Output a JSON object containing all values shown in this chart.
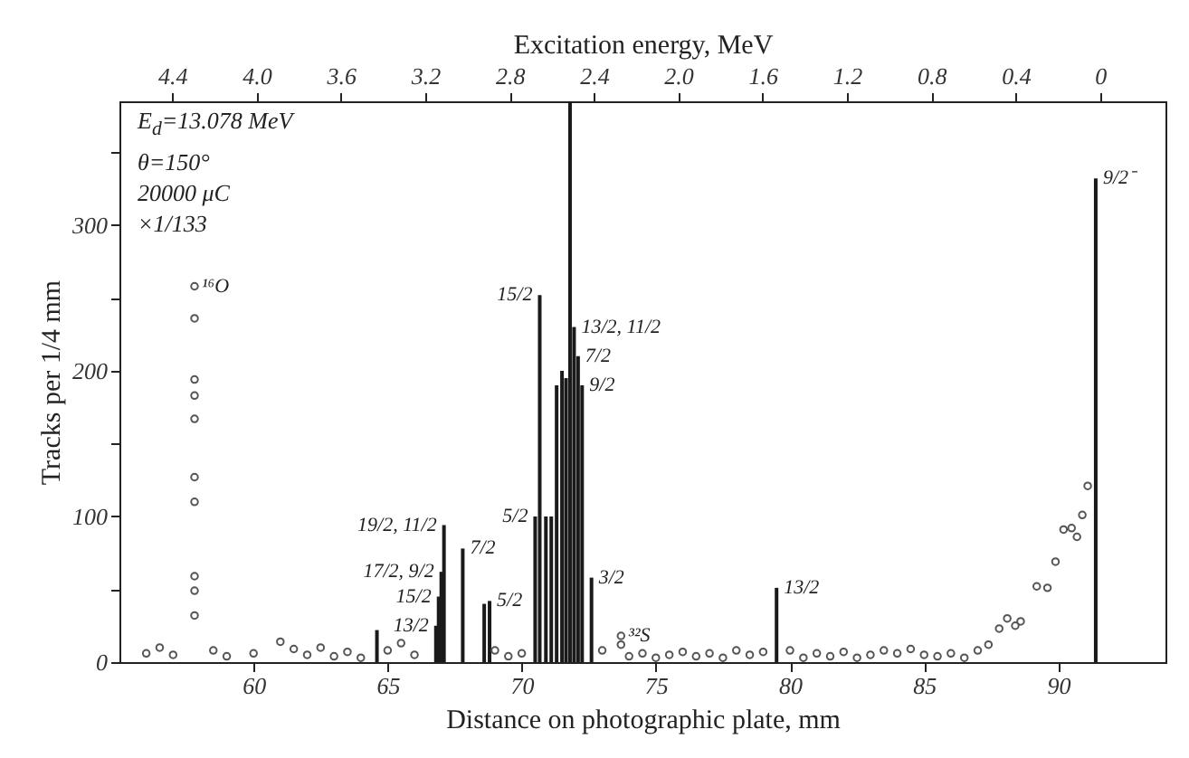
{
  "chart_data": {
    "type": "bar",
    "xlabel": "Distance on photographic plate, mm",
    "ylabel": "Tracks per 1/4 mm",
    "x2label": "Excitation energy, MeV",
    "xlim": [
      55,
      94
    ],
    "ylim": [
      0,
      385
    ],
    "x2lim": [
      4.65,
      -0.31
    ],
    "xticks": [
      60,
      65,
      70,
      75,
      80,
      85,
      90
    ],
    "yticks": [
      0,
      {
        "value": 50,
        "label": null
      },
      100,
      {
        "value": 150,
        "label": null
      },
      200,
      {
        "value": 250,
        "label": null
      },
      300,
      {
        "value": 350,
        "label": null
      }
    ],
    "x2ticks": [
      4.4,
      {
        "value": 4,
        "label": "4.0"
      },
      3.6,
      3.2,
      2.8,
      2.4,
      {
        "value": 2,
        "label": "2.0"
      },
      1.6,
      1.2,
      0.8,
      0.4,
      0
    ],
    "marker": "circle",
    "series": [
      {
        "color": "#1a1a1a",
        "x": [
          64.6,
          66.8,
          66.9,
          67.0,
          67.1,
          67.8,
          68.6,
          68.8,
          70.5,
          70.67,
          70.9,
          71.1,
          71.3,
          71.5,
          71.65,
          71.8,
          71.95,
          72.1,
          72.25,
          72.6,
          79.5,
          91.4
        ],
        "values": [
          22,
          25,
          45,
          62,
          94,
          78,
          40,
          42,
          100,
          252,
          100,
          100,
          190,
          200,
          195,
          385,
          230,
          210,
          190,
          58,
          51,
          332
        ]
      },
      {
        "type": "scatter",
        "color": "#555555",
        "x": [
          57.8,
          57.8,
          57.8,
          57.8,
          57.8,
          57.8,
          57.8,
          57.8,
          57.8,
          57.8,
          87.8,
          88.1,
          88.4,
          88.6,
          89.2,
          89.6,
          89.9,
          90.2,
          90.5,
          90.7,
          90.9,
          91.1,
          73.7,
          73.7,
          56,
          56.5,
          57,
          58.5,
          59,
          60,
          61,
          61.5,
          62,
          62.5,
          63,
          63.5,
          64,
          65,
          65.5,
          66,
          69,
          69.5,
          70,
          73,
          74,
          74.5,
          75,
          75.5,
          76,
          76.5,
          77,
          77.5,
          78,
          78.5,
          79,
          80,
          80.5,
          81,
          81.5,
          82,
          82.5,
          83,
          83.5,
          84,
          84.5,
          85,
          85.5,
          86,
          86.5,
          87,
          87.4
        ],
        "values": [
          258,
          236,
          194,
          183,
          167,
          127,
          110,
          59,
          49,
          32,
          23,
          30,
          25,
          28,
          52,
          51,
          69,
          91,
          92,
          86,
          101,
          121,
          18,
          12,
          6,
          10,
          5,
          8,
          4,
          6,
          14,
          9,
          5,
          10,
          4,
          7,
          3,
          8,
          13,
          5,
          8,
          4,
          6,
          8,
          4,
          6,
          3,
          5,
          7,
          4,
          6,
          3,
          8,
          5,
          7,
          8,
          3,
          6,
          4,
          7,
          3,
          5,
          8,
          6,
          9,
          5,
          4,
          6,
          3,
          8,
          12
        ]
      }
    ],
    "annotations": [
      "E$_{d}$=13.078 MeV",
      "θ=150°",
      "20000 μC",
      "×1/133",
      {
        "text": "¹⁶O",
        "x": 57.8,
        "y": 258
      },
      {
        "text": "17/2, 9/2",
        "x": 67.0,
        "y": 62
      },
      {
        "text": "15/2",
        "x": 66.9,
        "y": 45
      },
      {
        "text": "13/2",
        "x": 66.8,
        "y": 25
      },
      {
        "text": "19/2, 11/2",
        "x": 67.1,
        "y": 94
      },
      {
        "text": "7/2",
        "x": 67.8,
        "y": 78
      },
      {
        "text": "5/2",
        "x": 68.8,
        "y": 42
      },
      {
        "text": "15/2",
        "x": 70.67,
        "y": 252
      },
      {
        "text": "13/2, 11/2",
        "x": 71.95,
        "y": 230
      },
      {
        "text": "7/2",
        "x": 72.1,
        "y": 210
      },
      {
        "text": "9/2",
        "x": 72.25,
        "y": 190
      },
      {
        "text": "5/2",
        "x": 70.5,
        "y": 100
      },
      {
        "text": "3/2",
        "x": 72.6,
        "y": 58
      },
      {
        "text": "³²S",
        "x": 73.7,
        "y": 18
      },
      {
        "text": "13/2",
        "x": 79.5,
        "y": 51
      },
      {
        "text": "9/2⁻",
        "x": 91.4,
        "y": 332
      }
    ]
  }
}
